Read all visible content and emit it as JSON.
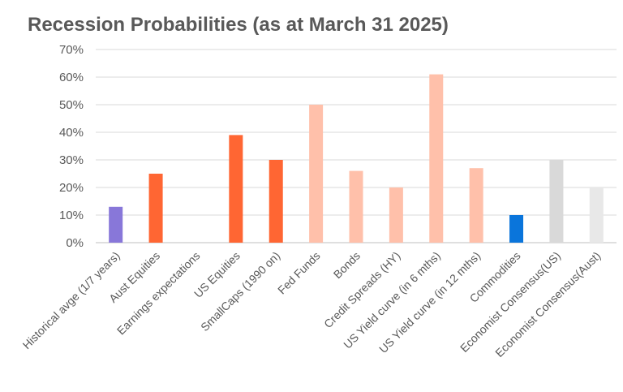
{
  "chart_data": {
    "type": "bar",
    "title": "Recession Probabilities  (as at March 31 2025)",
    "xlabel": "",
    "ylabel": "",
    "ylim": [
      0,
      0.7
    ],
    "yticks": [
      "0%",
      "10%",
      "20%",
      "30%",
      "40%",
      "50%",
      "60%",
      "70%"
    ],
    "grid": true,
    "legend": "none",
    "categories": [
      "Historical avge (1/7 years)",
      "Aust Equities",
      "Earnings expectations",
      "US Equities",
      "SmallCaps (1990 on)",
      "Fed Funds",
      "Bonds",
      "Credit Spreads (HY)",
      "US Yield curve (in 6 mths)",
      "US Yield curve (in 12 mths)",
      "Commodities",
      "Economist Consensus(US)",
      "Economist Consensus(Aust)"
    ],
    "values": [
      0.13,
      0.25,
      0.0,
      0.39,
      0.3,
      0.5,
      0.26,
      0.2,
      0.61,
      0.27,
      0.1,
      0.3,
      0.2
    ],
    "colors": [
      "#8877D9",
      "#FF6633",
      "#FF6633",
      "#FF6633",
      "#FF6633",
      "#FFC0AA",
      "#FFC0AA",
      "#FFC0AA",
      "#FFC0AA",
      "#FFC0AA",
      "#0A75DB",
      "#D9D9D9",
      "#E8E8E8"
    ]
  }
}
